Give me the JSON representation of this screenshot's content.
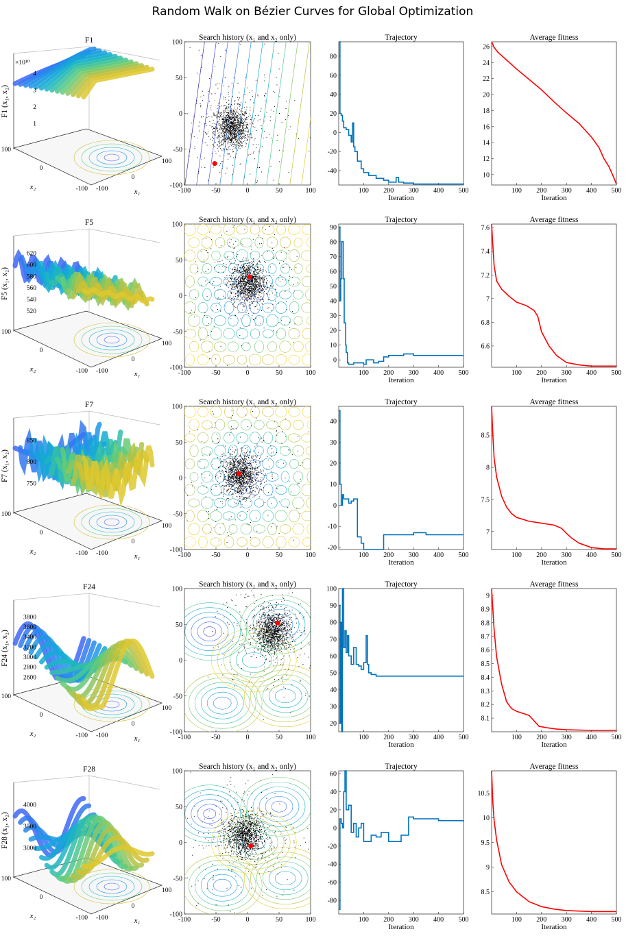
{
  "figure": {
    "title": "Random Walk on Bézier Curves for Global Optimization",
    "search_title": "Search history (x₁ and x₂ only)",
    "trajectory_title": "Trajectory",
    "fitness_title": "Average fitness",
    "iteration_label": "Iteration",
    "x1_label": "x₁",
    "x2_label": "x₂"
  },
  "colors": {
    "trajectory": "#0072BD",
    "fitness": "#FF0000",
    "best_marker": "#FF0000",
    "samples": "#000000",
    "surface_low": "#3E26A8",
    "surface_mid": "#25B4B9",
    "surface_high": "#F9D126"
  },
  "chart_data": [
    {
      "row": 1,
      "function": "F1",
      "surface_zlabel": "F1 (x₁, x₂)",
      "z_exponent": "×10¹⁰",
      "surface_zticks": [
        "1",
        "2",
        "3",
        "4"
      ],
      "surface_shape": "bowl",
      "search": {
        "type": "scatter",
        "xlim": [
          -100,
          100
        ],
        "ylim": [
          -100,
          100
        ],
        "best": [
          -52,
          -70
        ],
        "cloud_center": [
          -25,
          -20
        ],
        "contour_style": "diagonal"
      },
      "trajectory": {
        "type": "line",
        "xlim": [
          0,
          500
        ],
        "ylim": [
          -55,
          95
        ],
        "yticks": [
          -40,
          -20,
          0,
          20,
          40,
          60,
          80
        ],
        "x": [
          0,
          5,
          10,
          15,
          20,
          30,
          40,
          50,
          55,
          60,
          65,
          75,
          90,
          100,
          120,
          150,
          180,
          200,
          230,
          240,
          260,
          300,
          350,
          400,
          450,
          500
        ],
        "y": [
          95,
          20,
          18,
          12,
          5,
          3,
          -3,
          -10,
          10,
          -15,
          -20,
          -30,
          -38,
          -42,
          -45,
          -48,
          -50,
          -52,
          -47,
          -52,
          -53,
          -54,
          -54,
          -54,
          -54,
          -54
        ]
      },
      "fitness": {
        "type": "line",
        "xlim": [
          0,
          500
        ],
        "ylim": [
          8.7,
          26.6
        ],
        "yticks": [
          10,
          12,
          14,
          16,
          18,
          20,
          22,
          24,
          26
        ],
        "x": [
          0,
          10,
          25,
          50,
          100,
          150,
          200,
          250,
          300,
          350,
          400,
          430,
          450,
          470,
          490,
          500
        ],
        "y": [
          26.6,
          25.9,
          25.3,
          24.6,
          23.2,
          21.9,
          20.6,
          19.1,
          17.7,
          16.4,
          14.7,
          13.4,
          12.0,
          11.0,
          9.6,
          8.8
        ]
      }
    },
    {
      "row": 2,
      "function": "F5",
      "surface_zlabel": "F5 (x₁, x₂)",
      "z_exponent": "",
      "surface_zticks": [
        "520",
        "540",
        "560",
        "580",
        "600",
        "620"
      ],
      "surface_shape": "ridges",
      "search": {
        "type": "scatter",
        "xlim": [
          -100,
          100
        ],
        "ylim": [
          -100,
          100
        ],
        "best": [
          3,
          26
        ],
        "cloud_center": [
          0,
          18
        ],
        "contour_style": "cells"
      },
      "trajectory": {
        "type": "line",
        "xlim": [
          0,
          500
        ],
        "ylim": [
          -5,
          92
        ],
        "yticks": [
          0,
          10,
          20,
          30,
          40,
          50,
          60,
          70,
          80,
          90
        ],
        "x": [
          0,
          5,
          8,
          12,
          18,
          22,
          28,
          30,
          35,
          40,
          60,
          100,
          110,
          130,
          140,
          160,
          180,
          200,
          230,
          260,
          300,
          350,
          400,
          500
        ],
        "y": [
          90,
          40,
          55,
          80,
          55,
          25,
          10,
          5,
          -2,
          -3,
          -2,
          -3,
          0,
          0,
          -2,
          -1,
          2,
          3,
          3,
          4,
          3,
          3,
          3,
          3
        ]
      },
      "fitness": {
        "type": "line",
        "xlim": [
          0,
          500
        ],
        "ylim": [
          6.42,
          7.63
        ],
        "yticks": [
          6.6,
          6.8,
          7.0,
          7.2,
          7.4,
          7.6
        ],
        "x": [
          0,
          5,
          10,
          20,
          40,
          70,
          100,
          140,
          170,
          185,
          200,
          230,
          260,
          300,
          350,
          400,
          450,
          500
        ],
        "y": [
          7.63,
          7.45,
          7.28,
          7.15,
          7.08,
          7.02,
          6.97,
          6.94,
          6.9,
          6.85,
          6.72,
          6.6,
          6.52,
          6.46,
          6.44,
          6.43,
          6.43,
          6.43
        ]
      }
    },
    {
      "row": 3,
      "function": "F7",
      "surface_zlabel": "F7 (x₁, x₂)",
      "z_exponent": "",
      "surface_zticks": [
        "750",
        "800",
        "850"
      ],
      "surface_shape": "spiky",
      "search": {
        "type": "scatter",
        "xlim": [
          -100,
          100
        ],
        "ylim": [
          -100,
          100
        ],
        "best": [
          -14,
          6
        ],
        "cloud_center": [
          -12,
          4
        ],
        "contour_style": "cells"
      },
      "trajectory": {
        "type": "line",
        "xlim": [
          0,
          500
        ],
        "ylim": [
          -21,
          47
        ],
        "yticks": [
          -20,
          -10,
          0,
          10,
          20,
          30,
          40
        ],
        "x": [
          0,
          5,
          10,
          15,
          20,
          30,
          40,
          50,
          60,
          70,
          75,
          90,
          100,
          120,
          170,
          180,
          200,
          250,
          300,
          350,
          400,
          500
        ],
        "y": [
          45,
          10,
          0,
          5,
          3,
          3,
          1,
          2,
          3,
          3,
          -15,
          -18,
          -21,
          -21,
          -21,
          -14,
          -14,
          -14,
          -13,
          -14,
          -14,
          -14
        ]
      },
      "fitness": {
        "type": "line",
        "xlim": [
          0,
          500
        ],
        "ylim": [
          6.72,
          8.95
        ],
        "yticks": [
          7.0,
          7.5,
          8.0,
          8.5
        ],
        "x": [
          0,
          5,
          10,
          20,
          40,
          60,
          80,
          100,
          150,
          200,
          250,
          280,
          300,
          320,
          350,
          400,
          450,
          500
        ],
        "y": [
          8.95,
          8.5,
          8.15,
          7.85,
          7.55,
          7.38,
          7.28,
          7.22,
          7.16,
          7.13,
          7.1,
          7.05,
          6.97,
          6.9,
          6.82,
          6.75,
          6.73,
          6.73
        ]
      }
    },
    {
      "row": 4,
      "function": "F24",
      "surface_zlabel": "F24 (x₁, x₂)",
      "z_exponent": "",
      "surface_zticks": [
        "2600",
        "2800",
        "3000",
        "3200",
        "3400",
        "3600",
        "3800"
      ],
      "surface_shape": "waves",
      "search": {
        "type": "scatter",
        "xlim": [
          -100,
          100
        ],
        "ylim": [
          -100,
          100
        ],
        "best": [
          48,
          52
        ],
        "cloud_center": [
          40,
          40
        ],
        "contour_style": "blobs"
      },
      "trajectory": {
        "type": "line",
        "xlim": [
          0,
          500
        ],
        "ylim": [
          15,
          100
        ],
        "yticks": [
          20,
          30,
          40,
          50,
          60,
          70,
          80,
          90,
          100
        ],
        "x": [
          0,
          5,
          8,
          12,
          15,
          20,
          25,
          30,
          35,
          40,
          50,
          60,
          70,
          80,
          90,
          100,
          110,
          115,
          120,
          130,
          150,
          200,
          250,
          300,
          400,
          500
        ],
        "y": [
          90,
          20,
          80,
          15,
          100,
          65,
          75,
          62,
          72,
          60,
          55,
          65,
          55,
          54,
          52,
          56,
          72,
          55,
          50,
          49,
          48,
          48,
          48,
          48,
          48,
          48
        ]
      },
      "fitness": {
        "type": "line",
        "xlim": [
          0,
          500
        ],
        "ylim": [
          8.0,
          9.05
        ],
        "yticks": [
          8.1,
          8.2,
          8.3,
          8.4,
          8.5,
          8.6,
          8.7,
          8.8,
          8.9,
          9.0
        ],
        "x": [
          0,
          5,
          10,
          20,
          40,
          60,
          80,
          100,
          150,
          170,
          190,
          220,
          260,
          300,
          400,
          500
        ],
        "y": [
          9.05,
          8.9,
          8.75,
          8.55,
          8.35,
          8.22,
          8.17,
          8.15,
          8.12,
          8.08,
          8.04,
          8.03,
          8.02,
          8.015,
          8.01,
          8.01
        ]
      }
    },
    {
      "row": 5,
      "function": "F28",
      "surface_zlabel": "F28 (x₁, x₂)",
      "z_exponent": "",
      "surface_zticks": [
        "3000",
        "3500",
        "4000"
      ],
      "surface_shape": "waves2",
      "search": {
        "type": "scatter",
        "xlim": [
          -100,
          100
        ],
        "ylim": [
          -100,
          100
        ],
        "best": [
          5,
          -5
        ],
        "cloud_center": [
          -5,
          10
        ],
        "contour_style": "blobs"
      },
      "trajectory": {
        "type": "line",
        "xlim": [
          0,
          500
        ],
        "ylim": [
          -95,
          63
        ],
        "yticks": [
          -80,
          -60,
          -40,
          -20,
          0,
          20,
          40,
          60
        ],
        "x": [
          0,
          5,
          10,
          15,
          20,
          25,
          30,
          40,
          50,
          60,
          70,
          80,
          90,
          100,
          130,
          150,
          170,
          200,
          250,
          280,
          300,
          350,
          400,
          450,
          500
        ],
        "y": [
          -90,
          10,
          5,
          0,
          40,
          63,
          20,
          25,
          -5,
          5,
          -10,
          0,
          5,
          -15,
          -8,
          -10,
          -5,
          -15,
          -8,
          12,
          10,
          10,
          8,
          8,
          7
        ]
      },
      "fitness": {
        "type": "line",
        "xlim": [
          0,
          500
        ],
        "ylim": [
          8.05,
          10.95
        ],
        "yticks": [
          8.5,
          9.0,
          9.5,
          10.0,
          10.5
        ],
        "x": [
          0,
          5,
          10,
          20,
          40,
          70,
          100,
          150,
          200,
          250,
          300,
          400,
          500
        ],
        "y": [
          10.95,
          10.3,
          9.95,
          9.55,
          9.05,
          8.7,
          8.5,
          8.3,
          8.2,
          8.15,
          8.12,
          8.1,
          8.1
        ]
      }
    }
  ]
}
